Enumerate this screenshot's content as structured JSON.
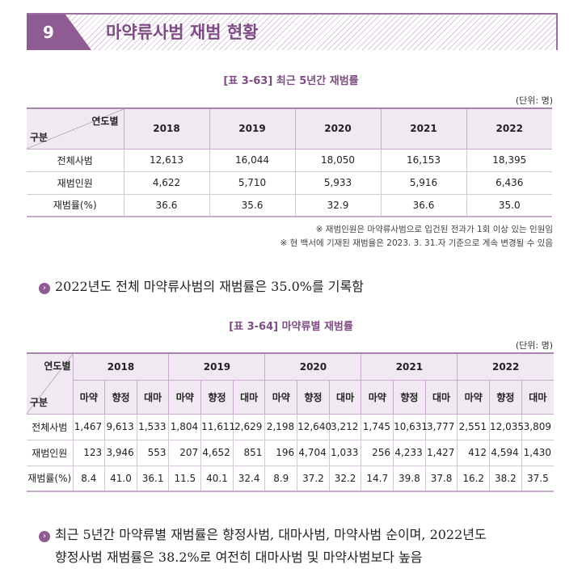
{
  "section": {
    "number": "9",
    "title": "마약류사범 재범 현황"
  },
  "table1": {
    "caption": "[표 3-63] 최근 5년간 재범률",
    "unit": "(단위: 명)",
    "corner_top": "연도별",
    "corner_bottom": "구분",
    "years": [
      "2018",
      "2019",
      "2020",
      "2021",
      "2022"
    ],
    "rows": [
      {
        "label": "전체사범",
        "values": [
          "12,613",
          "16,044",
          "18,050",
          "16,153",
          "18,395"
        ]
      },
      {
        "label": "재범인원",
        "values": [
          "4,622",
          "5,710",
          "5,933",
          "5,916",
          "6,436"
        ]
      },
      {
        "label": "재범률(%)",
        "values": [
          "36.6",
          "35.6",
          "32.9",
          "36.6",
          "35.0"
        ]
      }
    ],
    "notes": [
      "※ 재범인원은 마약류사범으로 입건된 전과가 1회 이상 있는 인원임",
      "※ 현 백서에 기재된 재범율은 2023. 3. 31.자 기준으로 계속 변경될 수 있음"
    ]
  },
  "bullet1": "2022년도 전체 마약류사범의 재범률은 35.0%를 기록함",
  "table2": {
    "caption": "[표 3-64] 마약류별 재범률",
    "unit": "(단위: 명)",
    "corner_top": "연도별",
    "corner_bottom": "구분",
    "years": [
      "2018",
      "2019",
      "2020",
      "2021",
      "2022"
    ],
    "types": [
      "마약",
      "향정",
      "대마"
    ],
    "rows": [
      {
        "label": "전체사범",
        "values": [
          "1,467",
          "9,613",
          "1,533",
          "1,804",
          "11,611",
          "2,629",
          "2,198",
          "12,640",
          "3,212",
          "1,745",
          "10,631",
          "3,777",
          "2,551",
          "12,035",
          "3,809"
        ]
      },
      {
        "label": "재범인원",
        "values": [
          "123",
          "3,946",
          "553",
          "207",
          "4,652",
          "851",
          "196",
          "4,704",
          "1,033",
          "256",
          "4,233",
          "1,427",
          "412",
          "4,594",
          "1,430"
        ]
      },
      {
        "label": "재범률(%)",
        "values": [
          "8.4",
          "41.0",
          "36.1",
          "11.5",
          "40.1",
          "32.4",
          "8.9",
          "37.2",
          "32.2",
          "14.7",
          "39.8",
          "37.8",
          "16.2",
          "38.2",
          "37.5"
        ]
      }
    ]
  },
  "bullet2": {
    "line1": "최근 5년간 마약류별 재범률은 향정사범, 대마사범, 마약사범 순이며, 2022년도",
    "line2": "향정사범 재범률은 38.2%로 여전히 대마사범 및 마약사범보다 높음"
  }
}
